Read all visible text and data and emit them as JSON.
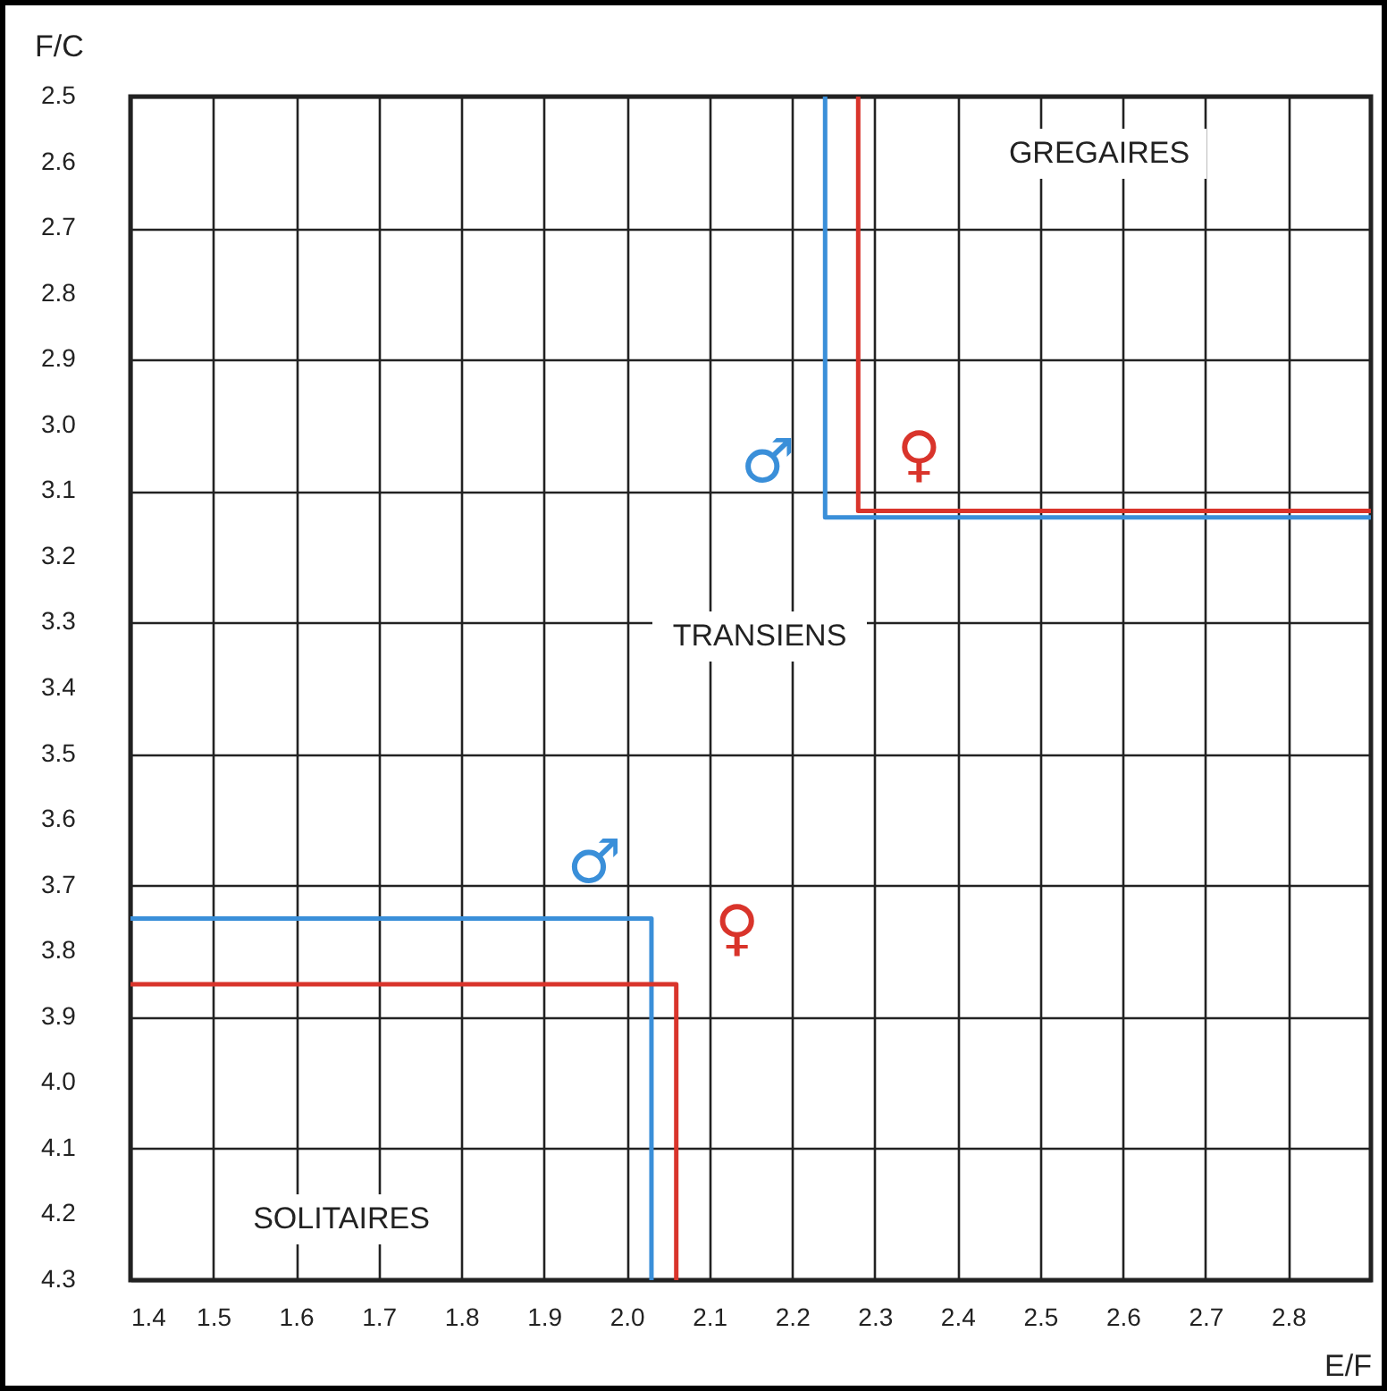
{
  "chart_data": {
    "type": "line",
    "xlabel": "E/F",
    "ylabel": "F/C",
    "xlim": [
      1.4,
      2.9
    ],
    "xticks": [
      1.4,
      1.5,
      1.6,
      1.7,
      1.8,
      1.9,
      {
        "value": 2,
        "label": "2.0"
      },
      2.1,
      2.2,
      2.3,
      2.4,
      2.5,
      2.6,
      2.7,
      2.8
    ],
    "ylim": [
      4.3,
      2.5
    ],
    "yticks": [
      2.5,
      2.6,
      2.7,
      2.8,
      2.9,
      {
        "value": 3,
        "label": "3.0"
      },
      3.1,
      3.2,
      3.3,
      3.4,
      3.5,
      3.6,
      3.7,
      3.8,
      3.9,
      {
        "value": 4,
        "label": "4.0"
      },
      4.1,
      4.2,
      4.3
    ],
    "grid": true,
    "marker": "none",
    "line_style": "solid",
    "series": [
      {
        "name": "♂",
        "color": "#3a8fd9",
        "x": [
          2.24,
          2.24,
          2.9
        ],
        "values": [
          2.5,
          3.14,
          3.14
        ]
      },
      {
        "name": "♀",
        "color": "#d9342b",
        "x": [
          2.28,
          2.28,
          2.9
        ],
        "values": [
          2.5,
          3.13,
          3.13
        ]
      },
      {
        "name": "♂",
        "color": "#3a8fd9",
        "x": [
          1.4,
          2.03,
          2.03
        ],
        "values": [
          3.75,
          3.75,
          4.3
        ]
      },
      {
        "name": "♀",
        "color": "#d9342b",
        "x": [
          1.4,
          2.06,
          2.06
        ],
        "values": [
          3.85,
          3.85,
          4.3
        ]
      }
    ],
    "annotations": [
      "GREGAIRES",
      "TRANSIENS",
      "SOLITAIRES"
    ]
  }
}
